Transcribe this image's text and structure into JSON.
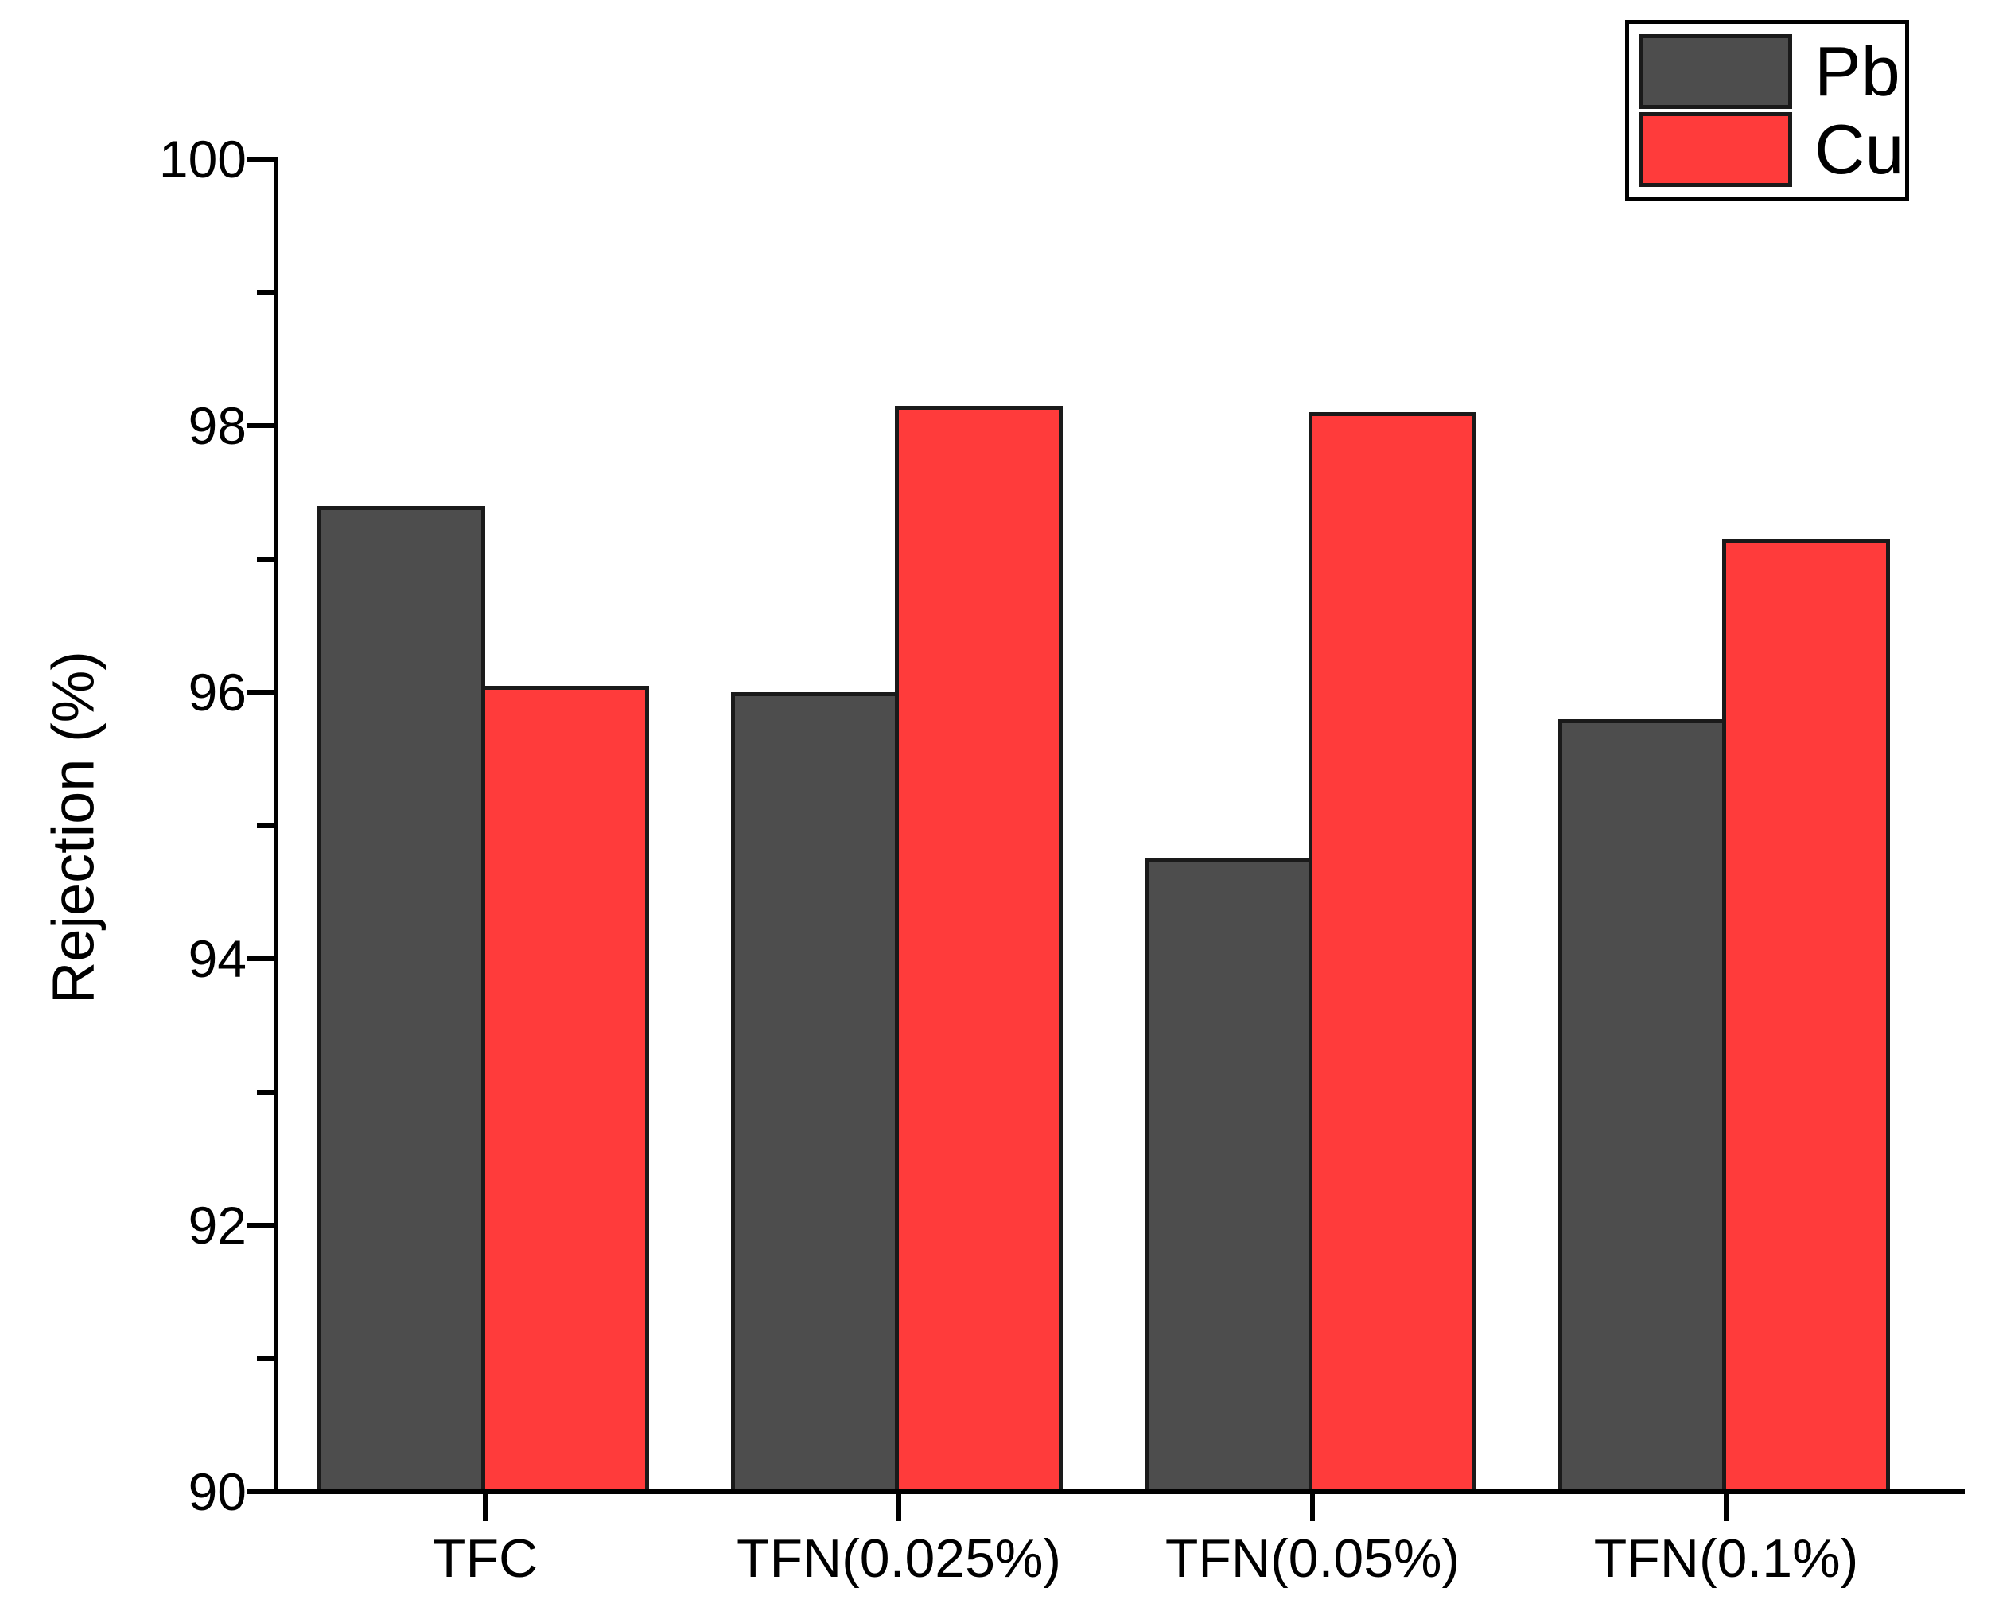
{
  "chart_data": {
    "type": "bar",
    "title": "",
    "categories": [
      "TFC",
      "TFN(0.025%)",
      "TFN(0.05%)",
      "TFN(0.1%)"
    ],
    "series": [
      {
        "name": "Pb",
        "color": "#4D4D4D",
        "values": [
          97.4,
          96.0,
          94.75,
          95.8
        ]
      },
      {
        "name": "Cu",
        "color": "#FF3B3B",
        "values": [
          96.05,
          98.15,
          98.1,
          97.15
        ]
      }
    ],
    "xlabel": "",
    "ylabel": "Rejection (%)",
    "ylim": [
      90,
      100
    ],
    "y_major_ticks": [
      100,
      98,
      96,
      94,
      92,
      90
    ],
    "y_minor_ticks": [
      99,
      97,
      95,
      93,
      91
    ],
    "grid": false,
    "legend_position": "top-right",
    "bar_border_color": "#1A1A1A",
    "axis_color": "#000000",
    "background_color": "#FFFFFF"
  }
}
